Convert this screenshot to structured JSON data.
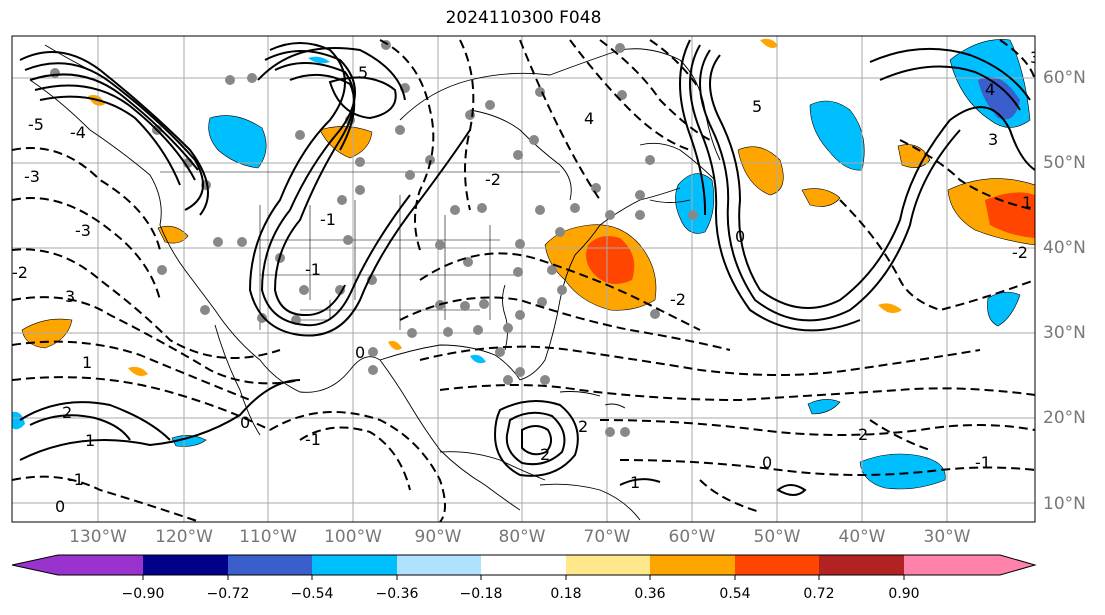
{
  "title": "2024110300 F048",
  "lat_labels": [
    "60°N",
    "50°N",
    "40°N",
    "30°N",
    "20°N",
    "10°N"
  ],
  "lon_labels": [
    "130°W",
    "120°W",
    "110°W",
    "100°W",
    "90°W",
    "80°W",
    "70°W",
    "60°W",
    "50°W",
    "40°W",
    "30°W"
  ],
  "contour_labels": [
    "5",
    "-5",
    "-4",
    "-3",
    "-2",
    "-1",
    "0",
    "1",
    "2",
    "3",
    "4",
    "-2",
    "-3",
    "-2",
    "-1",
    "0",
    "1",
    "2",
    "3",
    "5",
    "4",
    "3",
    "1",
    "0",
    "-2",
    "-1",
    "0",
    "1",
    "2",
    "-1",
    "2",
    "-1",
    "0"
  ],
  "colorbar": {
    "ticks": [
      "−0.90",
      "−0.72",
      "−0.54",
      "−0.36",
      "−0.18",
      "0.18",
      "0.36",
      "0.54",
      "0.72",
      "0.90"
    ],
    "colors": [
      "#9a32cd",
      "#00008b",
      "#3a5fcd",
      "#00bfff",
      "#b0e2ff",
      "#ffffff",
      "#ffe78c",
      "#ffa500",
      "#ff4500",
      "#b22222",
      "#ff82ab"
    ]
  }
}
